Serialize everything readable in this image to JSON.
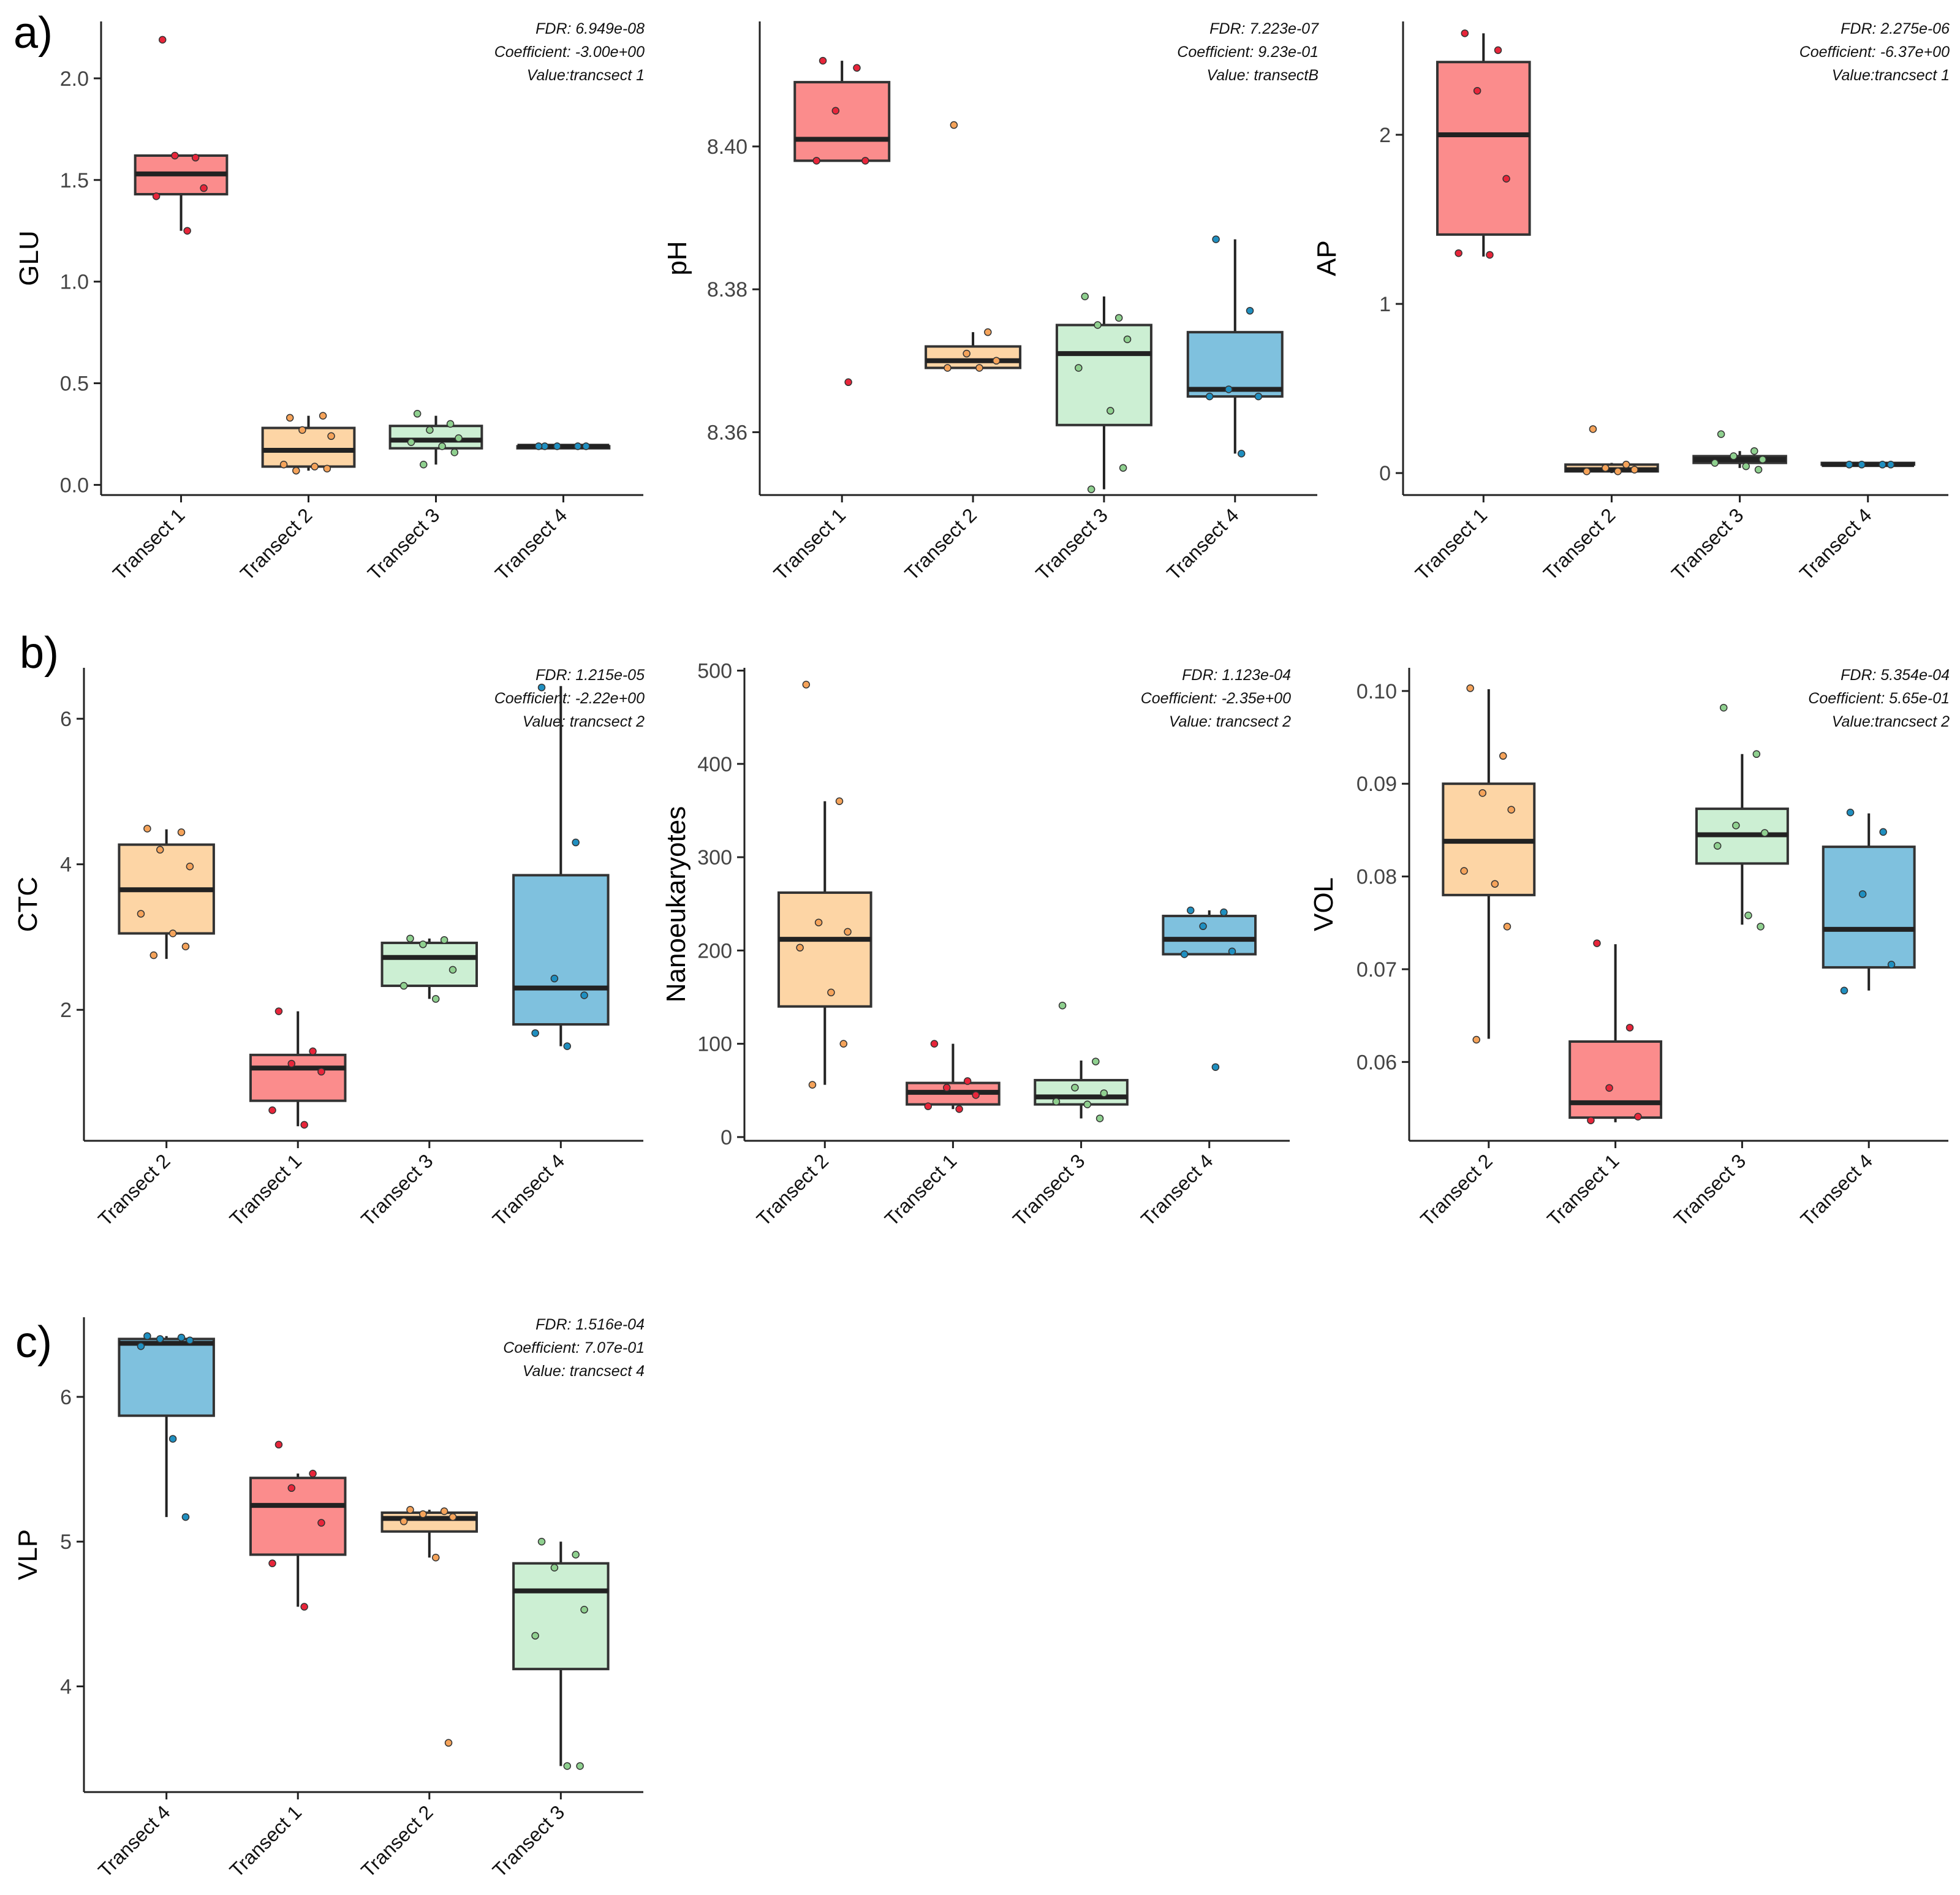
{
  "panel_letters": [
    "a)",
    "b)",
    "c)"
  ],
  "colors": {
    "Transect 1": "#fb8c8c",
    "Transect 2": "#fdd5a5",
    "Transect 3": "#ccefd3",
    "Transect 4": "#7fc1de",
    "Transect 1 points": "#e8253a",
    "Transect 2 points": "#f5a35a",
    "Transect 3 points": "#8fd08f",
    "Transect 4 points": "#1f8fc0"
  },
  "chart_data": [
    {
      "type": "box",
      "ylabel": "GLU",
      "ylim": [
        -0.05,
        2.28
      ],
      "yticks": [
        0.0,
        0.5,
        1.0,
        1.5,
        2.0
      ],
      "ytick_labels": [
        "0.0",
        "0.5",
        "1.0",
        "1.5",
        "2.0"
      ],
      "annotation": [
        "FDR: 6.949e-08",
        "Coefficient: -3.00e+00",
        "Value:trancsect 1"
      ],
      "categories": [
        "Transect 1",
        "Transect 2",
        "Transect 3",
        "Transect 4"
      ],
      "boxes": [
        {
          "group": "Transect 1",
          "whisker_low": 1.25,
          "q1": 1.43,
          "median": 1.53,
          "q3": 1.62,
          "whisker_high": 1.62,
          "points": [
            2.19,
            1.61,
            1.62,
            1.46,
            1.42,
            1.25
          ]
        },
        {
          "group": "Transect 2",
          "whisker_low": 0.07,
          "q1": 0.09,
          "median": 0.17,
          "q3": 0.28,
          "whisker_high": 0.34,
          "points": [
            0.33,
            0.34,
            0.27,
            0.24,
            0.1,
            0.09,
            0.08,
            0.07
          ]
        },
        {
          "group": "Transect 3",
          "whisker_low": 0.1,
          "q1": 0.18,
          "median": 0.22,
          "q3": 0.29,
          "whisker_high": 0.34,
          "points": [
            0.35,
            0.3,
            0.27,
            0.23,
            0.21,
            0.19,
            0.16,
            0.1
          ]
        },
        {
          "group": "Transect 4",
          "whisker_low": 0.18,
          "q1": 0.18,
          "median": 0.19,
          "q3": 0.19,
          "whisker_high": 0.19,
          "points": [
            0.19,
            0.19,
            0.19,
            0.19,
            0.19
          ]
        }
      ]
    },
    {
      "type": "box",
      "ylabel": "pH",
      "ylim": [
        8.3512,
        8.4175
      ],
      "yticks": [
        8.36,
        8.38,
        8.4
      ],
      "ytick_labels": [
        "8.36",
        "8.38",
        "8.40"
      ],
      "annotation": [
        "FDR: 7.223e-07",
        "Coefficient: 9.23e-01",
        "Value: transectB"
      ],
      "categories": [
        "Transect 1",
        "Transect 2",
        "Transect 3",
        "Transect 4"
      ],
      "boxes": [
        {
          "group": "Transect 1",
          "whisker_low": 8.398,
          "q1": 8.398,
          "median": 8.401,
          "q3": 8.409,
          "whisker_high": 8.412,
          "points": [
            8.412,
            8.411,
            8.405,
            8.398,
            8.398,
            8.367
          ]
        },
        {
          "group": "Transect 2",
          "whisker_low": 8.369,
          "q1": 8.369,
          "median": 8.37,
          "q3": 8.372,
          "whisker_high": 8.374,
          "points": [
            8.403,
            8.374,
            8.371,
            8.37,
            8.369,
            8.369
          ]
        },
        {
          "group": "Transect 3",
          "whisker_low": 8.352,
          "q1": 8.361,
          "median": 8.371,
          "q3": 8.375,
          "whisker_high": 8.379,
          "points": [
            8.379,
            8.376,
            8.375,
            8.373,
            8.369,
            8.363,
            8.355,
            8.352
          ]
        },
        {
          "group": "Transect 4",
          "whisker_low": 8.357,
          "q1": 8.365,
          "median": 8.366,
          "q3": 8.374,
          "whisker_high": 8.387,
          "points": [
            8.387,
            8.377,
            8.366,
            8.365,
            8.365,
            8.357
          ]
        }
      ]
    },
    {
      "type": "box",
      "ylabel": "AP",
      "ylim": [
        -0.13,
        2.67
      ],
      "yticks": [
        0,
        1,
        2
      ],
      "ytick_labels": [
        "0",
        "1",
        "2"
      ],
      "annotation": [
        "FDR: 2.275e-06",
        "Coefficient: -6.37e+00",
        "Value:trancsect 1"
      ],
      "categories": [
        "Transect 1",
        "Transect 2",
        "Transect 3",
        "Transect 4"
      ],
      "boxes": [
        {
          "group": "Transect 1",
          "whisker_low": 1.28,
          "q1": 1.41,
          "median": 2.0,
          "q3": 2.43,
          "whisker_high": 2.6,
          "points": [
            2.6,
            2.5,
            2.26,
            1.74,
            1.3,
            1.29
          ]
        },
        {
          "group": "Transect 2",
          "whisker_low": 0.0,
          "q1": 0.01,
          "median": 0.02,
          "q3": 0.05,
          "whisker_high": 0.06,
          "points": [
            0.26,
            0.05,
            0.03,
            0.02,
            0.01,
            0.01
          ]
        },
        {
          "group": "Transect 3",
          "whisker_low": 0.03,
          "q1": 0.06,
          "median": 0.08,
          "q3": 0.1,
          "whisker_high": 0.13,
          "points": [
            0.23,
            0.13,
            0.1,
            0.08,
            0.06,
            0.04,
            0.02
          ]
        },
        {
          "group": "Transect 4",
          "whisker_low": 0.05,
          "q1": 0.05,
          "median": 0.05,
          "q3": 0.06,
          "whisker_high": 0.06,
          "points": [
            0.05,
            0.05,
            0.05,
            0.05
          ]
        }
      ]
    },
    {
      "type": "box",
      "ylabel": "CTC",
      "ylim": [
        0.2,
        6.7
      ],
      "yticks": [
        2,
        4,
        6
      ],
      "ytick_labels": [
        "2",
        "4",
        "6"
      ],
      "annotation": [
        "FDR: 1.215e-05",
        "Coefficient: -2.22e+00",
        "Value: trancsect 2"
      ],
      "categories": [
        "Transect 2",
        "Transect 1",
        "Transect 3",
        "Transect 4"
      ],
      "boxes": [
        {
          "group": "Transect 2",
          "whisker_low": 2.7,
          "q1": 3.05,
          "median": 3.65,
          "q3": 4.27,
          "whisker_high": 4.48,
          "points": [
            4.49,
            4.44,
            4.2,
            3.97,
            3.32,
            3.05,
            2.87,
            2.75
          ]
        },
        {
          "group": "Transect 1",
          "whisker_low": 0.4,
          "q1": 0.75,
          "median": 1.2,
          "q3": 1.38,
          "whisker_high": 1.98,
          "points": [
            1.98,
            1.43,
            1.26,
            1.15,
            0.62,
            0.42
          ]
        },
        {
          "group": "Transect 3",
          "whisker_low": 2.15,
          "q1": 2.33,
          "median": 2.72,
          "q3": 2.92,
          "whisker_high": 2.98,
          "points": [
            2.98,
            2.96,
            2.9,
            2.55,
            2.33,
            2.15
          ]
        },
        {
          "group": "Transect 4",
          "whisker_low": 1.5,
          "q1": 1.8,
          "median": 2.3,
          "q3": 3.85,
          "whisker_high": 6.45,
          "points": [
            6.43,
            4.3,
            2.43,
            2.2,
            1.68,
            1.5
          ]
        }
      ]
    },
    {
      "type": "box",
      "ylabel": "Nanoeukaryotes",
      "ylim": [
        -4,
        503
      ],
      "yticks": [
        0,
        100,
        200,
        300,
        400,
        500
      ],
      "ytick_labels": [
        "0",
        "100",
        "200",
        "300",
        "400",
        "500"
      ],
      "annotation": [
        "FDR: 1.123e-04",
        "Coefficient: -2.35e+00",
        "Value: trancsect 2"
      ],
      "categories": [
        "Transect 2",
        "Transect 1",
        "Transect 3",
        "Transect 4"
      ],
      "boxes": [
        {
          "group": "Transect 2",
          "whisker_low": 56,
          "q1": 140,
          "median": 212,
          "q3": 262,
          "whisker_high": 360,
          "points": [
            485,
            360,
            230,
            220,
            203,
            155,
            100,
            56
          ]
        },
        {
          "group": "Transect 1",
          "whisker_low": 30,
          "q1": 35,
          "median": 48,
          "q3": 58,
          "whisker_high": 100,
          "points": [
            100,
            60,
            53,
            45,
            33,
            30
          ]
        },
        {
          "group": "Transect 3",
          "whisker_low": 20,
          "q1": 35,
          "median": 43,
          "q3": 61,
          "whisker_high": 82,
          "points": [
            141,
            81,
            53,
            47,
            38,
            35,
            20
          ]
        },
        {
          "group": "Transect 4",
          "whisker_low": 196,
          "q1": 196,
          "median": 212,
          "q3": 237,
          "whisker_high": 243,
          "points": [
            243,
            241,
            226,
            199,
            196,
            75
          ]
        }
      ]
    },
    {
      "type": "box",
      "ylabel": "VOL",
      "ylim": [
        0.0515,
        0.1025
      ],
      "yticks": [
        0.06,
        0.07,
        0.08,
        0.09,
        0.1
      ],
      "ytick_labels": [
        "0.06",
        "0.07",
        "0.08",
        "0.09",
        "0.10"
      ],
      "annotation": [
        "FDR: 5.354e-04",
        "Coefficient: 5.65e-01",
        "Value:trancsect 2"
      ],
      "categories": [
        "Transect 2",
        "Transect 1",
        "Transect 3",
        "Transect 4"
      ],
      "boxes": [
        {
          "group": "Transect 2",
          "whisker_low": 0.0625,
          "q1": 0.078,
          "median": 0.0838,
          "q3": 0.09,
          "whisker_high": 0.1002,
          "points": [
            0.1003,
            0.093,
            0.089,
            0.0872,
            0.0806,
            0.0792,
            0.0746,
            0.0624
          ]
        },
        {
          "group": "Transect 1",
          "whisker_low": 0.0535,
          "q1": 0.054,
          "median": 0.0556,
          "q3": 0.0622,
          "whisker_high": 0.0727,
          "points": [
            0.0728,
            0.0637,
            0.0572,
            0.0541,
            0.0537
          ]
        },
        {
          "group": "Transect 3",
          "whisker_low": 0.0748,
          "q1": 0.0814,
          "median": 0.0845,
          "q3": 0.0873,
          "whisker_high": 0.0932,
          "points": [
            0.0982,
            0.0932,
            0.0855,
            0.0847,
            0.0833,
            0.0758,
            0.0746
          ]
        },
        {
          "group": "Transect 4",
          "whisker_low": 0.0677,
          "q1": 0.0702,
          "median": 0.0743,
          "q3": 0.0832,
          "whisker_high": 0.0868,
          "points": [
            0.0869,
            0.0848,
            0.0781,
            0.0705,
            0.0677
          ]
        }
      ]
    },
    {
      "type": "box",
      "ylabel": "VLP",
      "ylim": [
        3.27,
        6.55
      ],
      "yticks": [
        4,
        5,
        6
      ],
      "ytick_labels": [
        "4",
        "5",
        "6"
      ],
      "annotation": [
        "FDR: 1.516e-04",
        "Coefficient: 7.07e-01",
        "Value: trancsect 4"
      ],
      "categories": [
        "Transect 4",
        "Transect 1",
        "Transect 2",
        "Transect 3"
      ],
      "boxes": [
        {
          "group": "Transect 4",
          "whisker_low": 5.17,
          "q1": 5.87,
          "median": 6.37,
          "q3": 6.4,
          "whisker_high": 6.42,
          "points": [
            6.42,
            6.41,
            6.4,
            6.39,
            6.35,
            5.71,
            5.17
          ]
        },
        {
          "group": "Transect 1",
          "whisker_low": 4.55,
          "q1": 4.91,
          "median": 5.25,
          "q3": 5.44,
          "whisker_high": 5.47,
          "points": [
            5.67,
            5.47,
            5.37,
            5.13,
            4.85,
            4.55
          ]
        },
        {
          "group": "Transect 2",
          "whisker_low": 4.89,
          "q1": 5.07,
          "median": 5.16,
          "q3": 5.2,
          "whisker_high": 5.22,
          "points": [
            5.22,
            5.21,
            5.19,
            5.17,
            5.14,
            4.89,
            3.61
          ]
        },
        {
          "group": "Transect 3",
          "whisker_low": 3.45,
          "q1": 4.12,
          "median": 4.66,
          "q3": 4.85,
          "whisker_high": 5.0,
          "points": [
            5.0,
            4.91,
            4.82,
            4.53,
            4.35,
            3.45,
            3.45
          ]
        }
      ]
    }
  ]
}
